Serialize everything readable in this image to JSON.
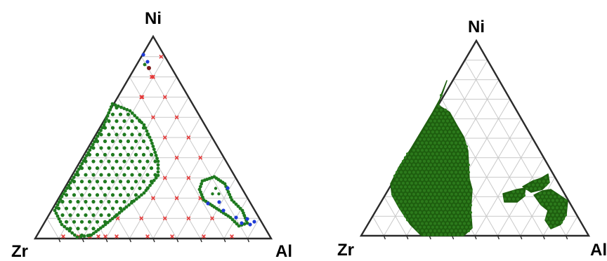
{
  "panels": [
    {
      "id": "left",
      "vertices": {
        "top": "Ni",
        "left": "Zr",
        "right": "Al"
      },
      "rendering": "scattered points",
      "legend": {
        "green": "#1f7a1f",
        "red": "#e63a3a",
        "blue": "#1f3bd6",
        "dark_red": "#7a1a1a"
      }
    },
    {
      "id": "right",
      "vertices": {
        "top": "Ni",
        "left": "Zr",
        "right": "Al"
      },
      "rendering": "filled regions",
      "legend": {
        "green": "#1e5e0f"
      }
    }
  ],
  "colors": {
    "triangle_edge": "#2b2b2b",
    "grid": "#c9c9c9",
    "text": "#000000"
  }
}
